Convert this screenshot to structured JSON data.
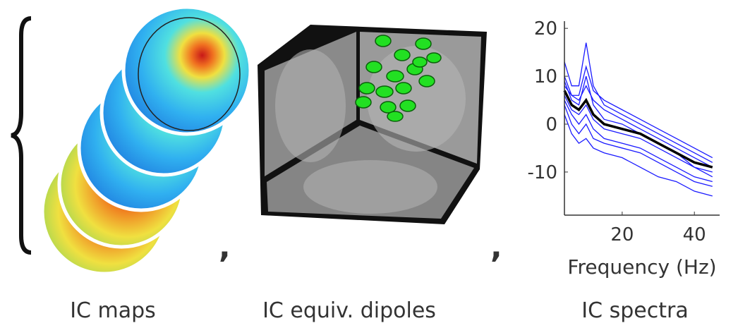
{
  "labels": {
    "maps": "IC maps",
    "dipoles": "IC equiv. dipoles",
    "spectra": "IC spectra",
    "separator": ","
  },
  "chart_data": {
    "type": "line",
    "x_label": "Frequency (Hz)",
    "x": [
      4,
      6,
      8,
      10,
      12,
      15,
      20,
      25,
      30,
      35,
      40,
      45
    ],
    "xlim": [
      4,
      47
    ],
    "xticks": [
      20,
      40
    ],
    "ylim": [
      -19,
      21.5
    ],
    "yticks": [
      -10,
      0,
      10,
      20
    ],
    "series": [
      {
        "color": "#1a1aff",
        "values": [
          13,
          8,
          8,
          17,
          8,
          4,
          2,
          0,
          -2,
          -4,
          -6,
          -8
        ]
      },
      {
        "color": "#1a1aff",
        "values": [
          10,
          6,
          5,
          8,
          5,
          3,
          1,
          -1,
          -3,
          -5,
          -7,
          -9
        ]
      },
      {
        "color": "#1a1aff",
        "values": [
          6,
          3,
          2,
          4,
          1,
          -1,
          -2,
          -3,
          -5,
          -7,
          -9,
          -10
        ]
      },
      {
        "color": "#1a1aff",
        "values": [
          4,
          0,
          -2,
          0,
          -3,
          -4,
          -5,
          -6,
          -8,
          -10,
          -12,
          -13
        ]
      },
      {
        "color": "#1a1aff",
        "values": [
          9,
          5,
          4,
          10,
          4,
          1,
          0,
          -2,
          -4,
          -6,
          -9,
          -11
        ]
      },
      {
        "color": "#1a1aff",
        "values": [
          2,
          -2,
          -4,
          -3,
          -5,
          -6,
          -7,
          -9,
          -11,
          -12,
          -14,
          -15
        ]
      },
      {
        "color": "#1a1aff",
        "values": [
          8,
          6,
          6,
          12,
          7,
          5,
          3,
          1,
          -1,
          -3,
          -5,
          -7
        ]
      },
      {
        "color": "#1a1aff",
        "values": [
          5,
          2,
          0,
          2,
          -1,
          -3,
          -4,
          -5,
          -7,
          -9,
          -11,
          -12
        ]
      },
      {
        "color": "#000000",
        "values": [
          7,
          4,
          3,
          5,
          2,
          0,
          -1,
          -2,
          -4,
          -6,
          -8,
          -9
        ]
      }
    ]
  }
}
